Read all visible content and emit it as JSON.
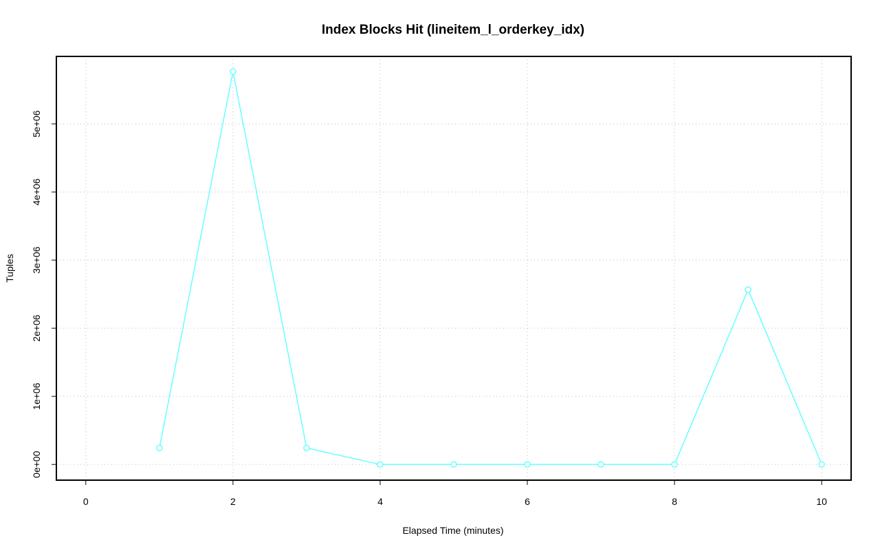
{
  "chart_data": {
    "type": "line",
    "title": "Index Blocks Hit (lineitem_l_orderkey_idx)",
    "x_label": "Elapsed Time (minutes)",
    "y_label": "Tuples",
    "x": [
      1,
      2,
      3,
      4,
      5,
      6,
      7,
      8,
      9,
      10
    ],
    "values": [
      242000,
      5768000,
      242000,
      0,
      0,
      0,
      0,
      0,
      2566000,
      0
    ],
    "color": "#66ffff",
    "xlim": [
      -0.4,
      10.4
    ],
    "xticks": [
      0,
      2,
      4,
      6,
      8,
      10
    ],
    "ylim": [
      -230400,
      5990400
    ],
    "yticks": [
      {
        "value": 0,
        "label": "0e+00"
      },
      {
        "value": 1000000,
        "label": "1e+06"
      },
      {
        "value": 2000000,
        "label": "2e+06"
      },
      {
        "value": 3000000,
        "label": "3e+06"
      },
      {
        "value": 4000000,
        "label": "4e+06"
      },
      {
        "value": 5000000,
        "label": "5e+06"
      }
    ],
    "grid": true
  }
}
